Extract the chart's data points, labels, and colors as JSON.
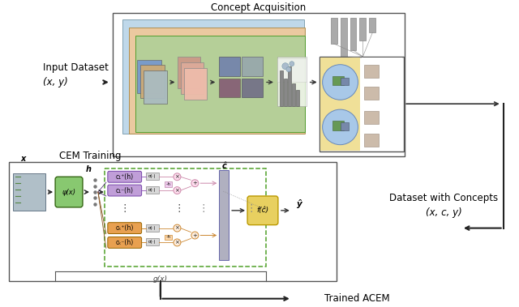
{
  "fig_width": 6.4,
  "fig_height": 3.79,
  "dpi": 100,
  "bg_color": "#ffffff",
  "concept_acq_title": "Concept Acquisition",
  "cem_training_title": "CEM Training",
  "input_text": "Input Dataset",
  "input_xy_text": "(x, y)",
  "dataset_concepts_text": "Dataset with Concepts",
  "dataset_xcy_text": "(x, c, y)",
  "trained_acem_text": "Trained ACEM",
  "colors": {
    "blue_panel": "#b8d4e8",
    "orange_panel": "#f0c898",
    "green_panel": "#b0d098",
    "yellow_panel": "#f0e098",
    "purple_box": "#c09ed8",
    "orange_box": "#e8a050",
    "green_encoder": "#88c870",
    "yellow_func": "#e8d060",
    "gray_bar": "#a8a8a8",
    "light_blue_circle": "#a8c8e8",
    "dashed_border": "#50a028"
  }
}
